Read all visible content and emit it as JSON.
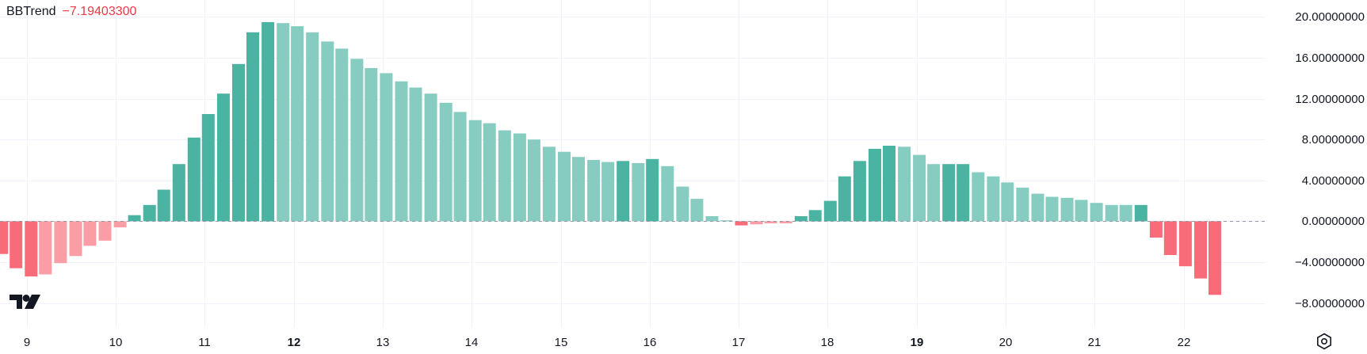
{
  "indicator": {
    "name": "BBTrend",
    "value": "−7.19403300",
    "value_color": "#f23645"
  },
  "colors": {
    "pos_strong": "#4ab3a2",
    "pos_weak": "#86ccc0",
    "neg_strong": "#f86b78",
    "neg_weak": "#fb9da5",
    "grid": "#f0f3fa",
    "zero_line": "#9598a1"
  },
  "icons": {
    "logo": "tradingview-logo-icon",
    "settings": "settings-icon"
  },
  "chart_data": {
    "type": "bar",
    "y_ticks": [
      {
        "value": 20,
        "label": "20.00000000"
      },
      {
        "value": 16,
        "label": "16.00000000"
      },
      {
        "value": 12,
        "label": "12.00000000"
      },
      {
        "value": 8,
        "label": "8.00000000"
      },
      {
        "value": 4,
        "label": "4.00000000"
      },
      {
        "value": 0,
        "label": "0.00000000"
      },
      {
        "value": -4,
        "label": "−4.00000000"
      },
      {
        "value": -8,
        "label": "−8.00000000"
      }
    ],
    "x_ticks": [
      {
        "label": "9",
        "x": 9.0,
        "major": false
      },
      {
        "label": "10",
        "x": 10.0,
        "major": false
      },
      {
        "label": "11",
        "x": 11.0,
        "major": false
      },
      {
        "label": "12",
        "x": 12.0,
        "major": true
      },
      {
        "label": "13",
        "x": 13.0,
        "major": false
      },
      {
        "label": "14",
        "x": 14.0,
        "major": false
      },
      {
        "label": "15",
        "x": 15.0,
        "major": false
      },
      {
        "label": "16",
        "x": 16.0,
        "major": false
      },
      {
        "label": "17",
        "x": 17.0,
        "major": false
      },
      {
        "label": "18",
        "x": 18.0,
        "major": false
      },
      {
        "label": "19",
        "x": 19.0,
        "major": true
      },
      {
        "label": "20",
        "x": 20.0,
        "major": false
      },
      {
        "label": "21",
        "x": 21.0,
        "major": false
      },
      {
        "label": "22",
        "x": 22.0,
        "major": false
      }
    ],
    "ylim": [
      -9.5,
      20.5
    ],
    "xlim": [
      8.7,
      22.92
    ],
    "grid": true,
    "bars": [
      {
        "x": 8.72,
        "value": -3.2,
        "shade": "neg_strong"
      },
      {
        "x": 8.88,
        "value": -4.6,
        "shade": "neg_strong"
      },
      {
        "x": 9.05,
        "value": -5.4,
        "shade": "neg_strong"
      },
      {
        "x": 9.21,
        "value": -5.2,
        "shade": "neg_weak"
      },
      {
        "x": 9.38,
        "value": -4.1,
        "shade": "neg_weak"
      },
      {
        "x": 9.55,
        "value": -3.4,
        "shade": "neg_weak"
      },
      {
        "x": 9.71,
        "value": -2.4,
        "shade": "neg_weak"
      },
      {
        "x": 9.88,
        "value": -1.9,
        "shade": "neg_weak"
      },
      {
        "x": 10.05,
        "value": -0.6,
        "shade": "neg_weak"
      },
      {
        "x": 10.21,
        "value": 0.6,
        "shade": "pos_strong"
      },
      {
        "x": 10.38,
        "value": 1.6,
        "shade": "pos_strong"
      },
      {
        "x": 10.54,
        "value": 3.1,
        "shade": "pos_strong"
      },
      {
        "x": 10.71,
        "value": 5.6,
        "shade": "pos_strong"
      },
      {
        "x": 10.88,
        "value": 8.2,
        "shade": "pos_strong"
      },
      {
        "x": 11.04,
        "value": 10.5,
        "shade": "pos_strong"
      },
      {
        "x": 11.21,
        "value": 12.5,
        "shade": "pos_strong"
      },
      {
        "x": 11.38,
        "value": 15.4,
        "shade": "pos_strong"
      },
      {
        "x": 11.54,
        "value": 18.5,
        "shade": "pos_strong"
      },
      {
        "x": 11.71,
        "value": 19.5,
        "shade": "pos_strong"
      },
      {
        "x": 11.88,
        "value": 19.4,
        "shade": "pos_weak"
      },
      {
        "x": 12.04,
        "value": 19.1,
        "shade": "pos_weak"
      },
      {
        "x": 12.21,
        "value": 18.5,
        "shade": "pos_weak"
      },
      {
        "x": 12.38,
        "value": 17.6,
        "shade": "pos_weak"
      },
      {
        "x": 12.54,
        "value": 16.9,
        "shade": "pos_weak"
      },
      {
        "x": 12.71,
        "value": 15.9,
        "shade": "pos_weak"
      },
      {
        "x": 12.87,
        "value": 15.0,
        "shade": "pos_weak"
      },
      {
        "x": 13.04,
        "value": 14.5,
        "shade": "pos_weak"
      },
      {
        "x": 13.21,
        "value": 13.7,
        "shade": "pos_weak"
      },
      {
        "x": 13.37,
        "value": 13.1,
        "shade": "pos_weak"
      },
      {
        "x": 13.54,
        "value": 12.5,
        "shade": "pos_weak"
      },
      {
        "x": 13.71,
        "value": 11.6,
        "shade": "pos_weak"
      },
      {
        "x": 13.87,
        "value": 10.7,
        "shade": "pos_weak"
      },
      {
        "x": 14.04,
        "value": 9.9,
        "shade": "pos_weak"
      },
      {
        "x": 14.2,
        "value": 9.6,
        "shade": "pos_weak"
      },
      {
        "x": 14.37,
        "value": 8.9,
        "shade": "pos_weak"
      },
      {
        "x": 14.54,
        "value": 8.6,
        "shade": "pos_weak"
      },
      {
        "x": 14.7,
        "value": 8.0,
        "shade": "pos_weak"
      },
      {
        "x": 14.87,
        "value": 7.3,
        "shade": "pos_weak"
      },
      {
        "x": 15.04,
        "value": 6.8,
        "shade": "pos_weak"
      },
      {
        "x": 15.2,
        "value": 6.3,
        "shade": "pos_weak"
      },
      {
        "x": 15.37,
        "value": 6.0,
        "shade": "pos_weak"
      },
      {
        "x": 15.53,
        "value": 5.8,
        "shade": "pos_weak"
      },
      {
        "x": 15.7,
        "value": 5.9,
        "shade": "pos_strong"
      },
      {
        "x": 15.87,
        "value": 5.7,
        "shade": "pos_weak"
      },
      {
        "x": 16.03,
        "value": 6.1,
        "shade": "pos_strong"
      },
      {
        "x": 16.2,
        "value": 5.4,
        "shade": "pos_weak"
      },
      {
        "x": 16.37,
        "value": 3.4,
        "shade": "pos_weak"
      },
      {
        "x": 16.53,
        "value": 2.2,
        "shade": "pos_weak"
      },
      {
        "x": 16.7,
        "value": 0.5,
        "shade": "pos_weak"
      },
      {
        "x": 16.86,
        "value": 0.1,
        "shade": "pos_weak"
      },
      {
        "x": 17.03,
        "value": -0.4,
        "shade": "neg_strong"
      },
      {
        "x": 17.2,
        "value": -0.3,
        "shade": "neg_weak"
      },
      {
        "x": 17.36,
        "value": -0.2,
        "shade": "neg_weak"
      },
      {
        "x": 17.53,
        "value": -0.2,
        "shade": "neg_weak"
      },
      {
        "x": 17.7,
        "value": 0.5,
        "shade": "pos_strong"
      },
      {
        "x": 17.86,
        "value": 1.1,
        "shade": "pos_strong"
      },
      {
        "x": 18.03,
        "value": 2.0,
        "shade": "pos_strong"
      },
      {
        "x": 18.19,
        "value": 4.4,
        "shade": "pos_strong"
      },
      {
        "x": 18.36,
        "value": 5.9,
        "shade": "pos_strong"
      },
      {
        "x": 18.53,
        "value": 7.1,
        "shade": "pos_strong"
      },
      {
        "x": 18.69,
        "value": 7.4,
        "shade": "pos_strong"
      },
      {
        "x": 18.86,
        "value": 7.3,
        "shade": "pos_weak"
      },
      {
        "x": 19.03,
        "value": 6.5,
        "shade": "pos_weak"
      },
      {
        "x": 19.19,
        "value": 5.6,
        "shade": "pos_weak"
      },
      {
        "x": 19.36,
        "value": 5.6,
        "shade": "pos_strong"
      },
      {
        "x": 19.52,
        "value": 5.6,
        "shade": "pos_strong"
      },
      {
        "x": 19.69,
        "value": 4.8,
        "shade": "pos_weak"
      },
      {
        "x": 19.86,
        "value": 4.4,
        "shade": "pos_weak"
      },
      {
        "x": 20.02,
        "value": 3.8,
        "shade": "pos_weak"
      },
      {
        "x": 20.19,
        "value": 3.3,
        "shade": "pos_weak"
      },
      {
        "x": 20.36,
        "value": 2.7,
        "shade": "pos_weak"
      },
      {
        "x": 20.52,
        "value": 2.4,
        "shade": "pos_weak"
      },
      {
        "x": 20.69,
        "value": 2.3,
        "shade": "pos_weak"
      },
      {
        "x": 20.85,
        "value": 2.1,
        "shade": "pos_weak"
      },
      {
        "x": 21.02,
        "value": 1.8,
        "shade": "pos_weak"
      },
      {
        "x": 21.19,
        "value": 1.6,
        "shade": "pos_weak"
      },
      {
        "x": 21.35,
        "value": 1.6,
        "shade": "pos_weak"
      },
      {
        "x": 21.52,
        "value": 1.6,
        "shade": "pos_strong"
      },
      {
        "x": 21.69,
        "value": -1.6,
        "shade": "neg_strong"
      },
      {
        "x": 21.85,
        "value": -3.3,
        "shade": "neg_strong"
      },
      {
        "x": 22.02,
        "value": -4.4,
        "shade": "neg_strong"
      },
      {
        "x": 22.19,
        "value": -5.6,
        "shade": "neg_strong"
      },
      {
        "x": 22.35,
        "value": -7.2,
        "shade": "neg_strong"
      }
    ]
  }
}
